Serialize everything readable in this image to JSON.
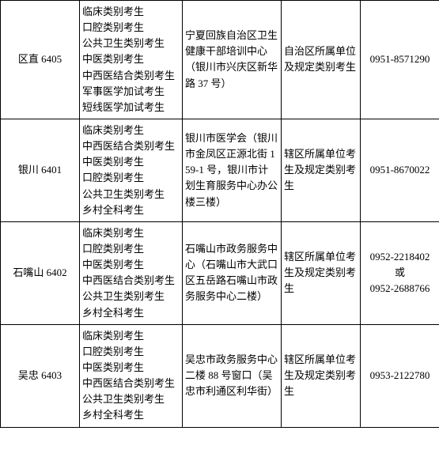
{
  "table": {
    "rows": [
      {
        "region": "区直 6405",
        "categories": [
          "临床类别考生",
          "口腔类别考生",
          "公共卫生类别考生",
          "中医类别考生",
          "中西医结合类别考生",
          "军事医学加试考生",
          "短线医学加试考生"
        ],
        "address": "宁夏回族自治区卫生健康干部培训中心（银川市兴庆区新华路 37 号）",
        "scope": "自治区所属单位及规定类别考生",
        "phones": [
          "0951-8571290"
        ]
      },
      {
        "region": "银川 6401",
        "categories": [
          "临床类别考生",
          "中西医结合类别考生",
          "中医类别考生",
          "口腔类别考生",
          "公共卫生类别考生",
          "乡村全科考生"
        ],
        "address": "银川市医学会（银川市金凤区正源北街 159-1 号，银川市计划生育服务中心办公楼三楼）",
        "scope": "辖区所属单位考生及规定类别考生",
        "phones": [
          "0951-8670022"
        ]
      },
      {
        "region": "石嘴山 6402",
        "categories": [
          "临床类别考生",
          "口腔类别考生",
          "中医类别考生",
          "中西医结合类别考生",
          "公共卫生类别考生",
          "乡村全科考生"
        ],
        "address": "石嘴山市政务服务中心（石嘴山市大武口区五岳路石嘴山市政务服务中心二楼）",
        "scope": "辖区所属单位考生及规定类别考生",
        "phones": [
          "0952-2218402",
          "或",
          "0952-2688766"
        ]
      },
      {
        "region": "吴忠 6403",
        "categories": [
          "临床类别考生",
          "口腔类别考生",
          "中医类别考生",
          "中西医结合类别考生",
          "公共卫生类别考生",
          "乡村全科考生"
        ],
        "address": "吴忠市政务服务中心二楼 88 号窗口（吴忠市利通区利华街）",
        "scope": "辖区所属单位考生及规定类别考生",
        "phones": [
          "0953-2122780"
        ]
      }
    ]
  }
}
